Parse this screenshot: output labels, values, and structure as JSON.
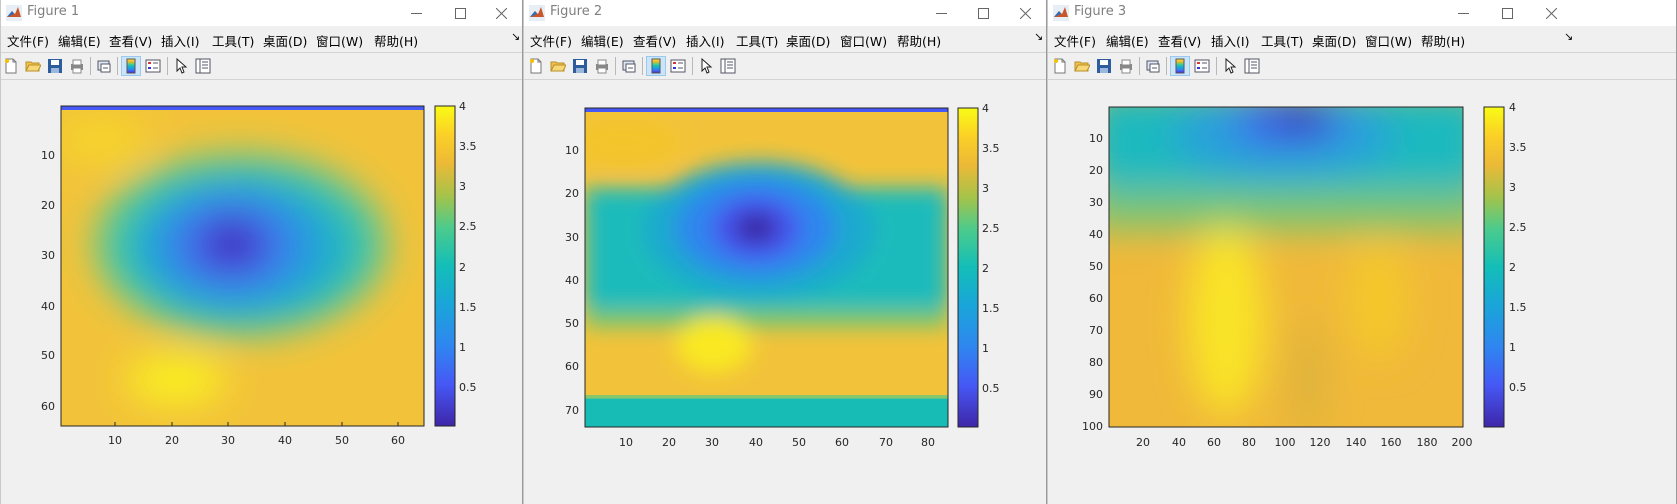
{
  "windows": [
    {
      "title": "Figure 1",
      "menus": [
        "文件(F)",
        "编辑(E)",
        "查看(V)",
        "插入(I)",
        "工具(T)",
        "桌面(D)",
        "窗口(W)",
        "帮助(H)"
      ],
      "plot": {
        "type": "heatmap",
        "x_ticks": [
          "10",
          "20",
          "30",
          "40",
          "50",
          "60"
        ],
        "y_ticks": [
          "10",
          "20",
          "30",
          "40",
          "50",
          "60"
        ],
        "colorbar_ticks": [
          "4",
          "3.5",
          "3",
          "2.5",
          "2",
          "1.5",
          "1",
          "0.5"
        ]
      }
    },
    {
      "title": "Figure 2",
      "menus": [
        "文件(F)",
        "编辑(E)",
        "查看(V)",
        "插入(I)",
        "工具(T)",
        "桌面(D)",
        "窗口(W)",
        "帮助(H)"
      ],
      "plot": {
        "type": "heatmap",
        "x_ticks": [
          "10",
          "20",
          "30",
          "40",
          "50",
          "60",
          "70",
          "80"
        ],
        "y_ticks": [
          "10",
          "20",
          "30",
          "40",
          "50",
          "60",
          "70"
        ],
        "colorbar_ticks": [
          "4",
          "3.5",
          "3",
          "2.5",
          "2",
          "1.5",
          "1",
          "0.5"
        ]
      }
    },
    {
      "title": "Figure 3",
      "menus": [
        "文件(F)",
        "编辑(E)",
        "查看(V)",
        "插入(I)",
        "工具(T)",
        "桌面(D)",
        "窗口(W)",
        "帮助(H)"
      ],
      "plot": {
        "type": "heatmap",
        "x_ticks": [
          "20",
          "40",
          "60",
          "80",
          "100",
          "120",
          "140",
          "160",
          "180",
          "200"
        ],
        "y_ticks": [
          "10",
          "20",
          "30",
          "40",
          "50",
          "60",
          "70",
          "80",
          "90",
          "100"
        ],
        "colorbar_ticks": [
          "4",
          "3.5",
          "3",
          "2.5",
          "2",
          "1.5",
          "1",
          "0.5"
        ]
      }
    }
  ],
  "colors": {
    "parula_low": "#3e26a8",
    "parula_mid": "#13beb8",
    "parula_high": "#f9fb15",
    "titlebar_text": "#7f7f7f",
    "toolbar_active": "#cce4f7"
  },
  "icons": {
    "toolbar": [
      "new-file-icon",
      "open-folder-icon",
      "save-icon",
      "print-icon",
      "link-figure-icon",
      "colorbar-icon",
      "legend-icon",
      "pointer-icon",
      "property-inspector-icon"
    ],
    "window": [
      "minimize-icon",
      "maximize-icon",
      "close-icon"
    ]
  }
}
